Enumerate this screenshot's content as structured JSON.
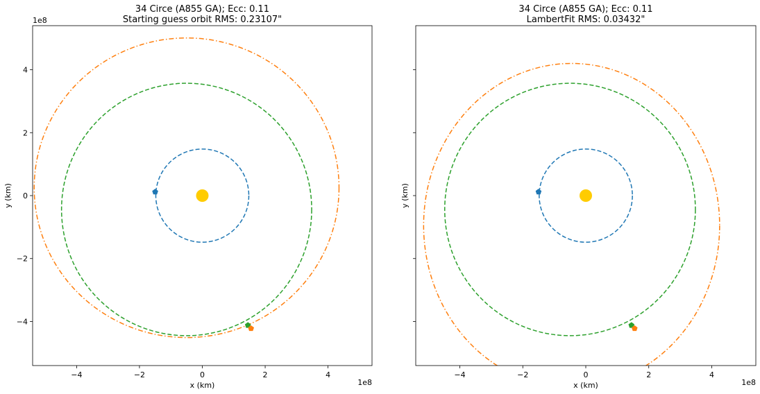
{
  "chart_data": [
    {
      "type": "scatter",
      "title_line1": "34 Circe (A855 GA); Ecc: 0.11",
      "title_line2": "Starting guess orbit RMS: 0.23107\"",
      "xlabel": "x (km)",
      "ylabel": "y (km)",
      "x_offset_label": "1e8",
      "y_offset_label": "1e8",
      "xlim": [
        -5.4,
        5.4
      ],
      "ylim": [
        -5.4,
        5.4
      ],
      "xticks": [
        "-4",
        "-2",
        "0",
        "2",
        "4"
      ],
      "yticks": [
        "-4",
        "-2",
        "0",
        "2",
        "4"
      ],
      "show_yticklabels": true,
      "sun": {
        "x": 0.0,
        "y": 0.0,
        "color": "#ffcc00"
      },
      "orbits": [
        {
          "a": 1.48,
          "b": 1.48,
          "cx": 0.0,
          "cy": 0.0,
          "color": "#1f77b4",
          "dash": "dashed"
        },
        {
          "a": 3.98,
          "b": 4.01,
          "cx": -0.5,
          "cy": -0.44,
          "color": "#2ca02c",
          "dash": "dashed"
        },
        {
          "a": 4.85,
          "b": 4.76,
          "cx": -0.5,
          "cy": 0.25,
          "color": "#ff7f0e",
          "dash": "dashdot"
        }
      ],
      "points": [
        {
          "x": -1.5,
          "y": 0.12,
          "color": "#1f77b4"
        },
        {
          "x": 1.45,
          "y": -4.12,
          "color": "#2ca02c"
        },
        {
          "x": 1.55,
          "y": -4.22,
          "color": "#ff7f0e"
        }
      ]
    },
    {
      "type": "scatter",
      "title_line1": "34 Circe (A855 GA); Ecc: 0.11",
      "title_line2": "LambertFit RMS: 0.03432\"",
      "xlabel": "x (km)",
      "ylabel": "y (km)",
      "x_offset_label": "1e8",
      "y_offset_label": "",
      "xlim": [
        -5.4,
        5.4
      ],
      "ylim": [
        -5.4,
        5.4
      ],
      "xticks": [
        "-4",
        "-2",
        "0",
        "2",
        "4"
      ],
      "yticks": [
        "-4",
        "-2",
        "0",
        "2",
        "4"
      ],
      "show_yticklabels": false,
      "sun": {
        "x": 0.0,
        "y": 0.0,
        "color": "#ffcc00"
      },
      "orbits": [
        {
          "a": 1.48,
          "b": 1.48,
          "cx": 0.0,
          "cy": 0.0,
          "color": "#1f77b4",
          "dash": "dashed"
        },
        {
          "a": 3.98,
          "b": 4.01,
          "cx": -0.5,
          "cy": -0.44,
          "color": "#2ca02c",
          "dash": "dashed"
        },
        {
          "a": 4.7,
          "b": 5.15,
          "cx": -0.45,
          "cy": -0.95,
          "color": "#ff7f0e",
          "dash": "dashdot"
        }
      ],
      "points": [
        {
          "x": -1.5,
          "y": 0.12,
          "color": "#1f77b4"
        },
        {
          "x": 1.45,
          "y": -4.12,
          "color": "#2ca02c"
        },
        {
          "x": 1.55,
          "y": -4.22,
          "color": "#ff7f0e"
        }
      ]
    }
  ]
}
